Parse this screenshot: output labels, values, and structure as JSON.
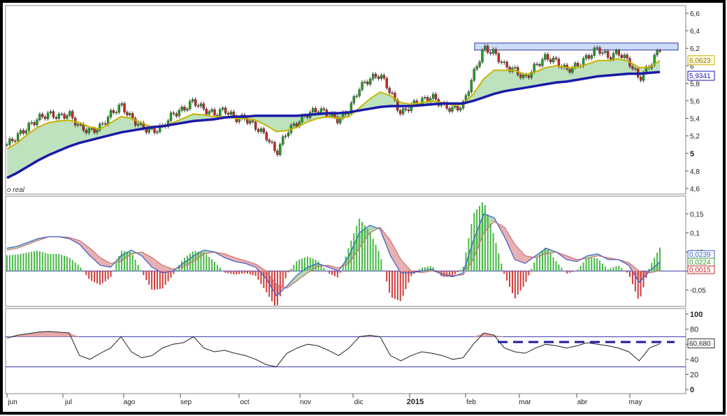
{
  "colors": {
    "price_fill": "#a8d8a8",
    "price_fill_neg": "#e6a8a8",
    "ema_short": "#c8b400",
    "ema_long": "#1a1aa8",
    "up_candle": "#22a022",
    "down_candle": "#c82828",
    "macd_line": "#3a5ad0",
    "signal_line": "#d07070",
    "rsi_line": "#222222",
    "guide": "#3333aa",
    "resistance_box": "#cfdcf5"
  },
  "labels": {
    "watermark": "o real",
    "year": "2015"
  },
  "chart_data": [
    {
      "type": "line",
      "panel": "price",
      "x_labels": [
        "jun",
        "jul",
        "ago",
        "sep",
        "oct",
        "nov",
        "dic",
        "2015",
        "feb",
        "mar",
        "abr",
        "may"
      ],
      "yticks": [
        "6,6",
        "6,4",
        "6,2",
        "6",
        "5,8",
        "5,6",
        "5,4",
        "5,2",
        "5",
        "4,8",
        "4,6"
      ],
      "ylim": [
        4.6,
        6.6
      ],
      "series": [
        {
          "role": "price",
          "values": [
            5.1,
            5.2,
            5.3,
            5.4,
            5.45,
            5.42,
            5.45,
            5.3,
            5.25,
            5.3,
            5.45,
            5.55,
            5.4,
            5.3,
            5.25,
            5.3,
            5.45,
            5.5,
            5.6,
            5.5,
            5.45,
            5.5,
            5.4,
            5.4,
            5.3,
            5.2,
            5.0,
            5.25,
            5.35,
            5.45,
            5.5,
            5.45,
            5.38,
            5.5,
            5.75,
            5.85,
            5.9,
            5.7,
            5.45,
            5.55,
            5.6,
            5.65,
            5.55,
            5.5,
            5.55,
            5.9,
            6.2,
            6.15,
            6.0,
            5.95,
            5.85,
            6.0,
            6.1,
            6.05,
            5.95,
            6.0,
            6.1,
            6.2,
            6.1,
            6.15,
            6.05,
            5.85,
            6.0,
            6.2
          ]
        },
        {
          "role": "ema_short",
          "label": "6,0623",
          "values": [
            5.05,
            5.12,
            5.22,
            5.3,
            5.35,
            5.37,
            5.38,
            5.35,
            5.3,
            5.28,
            5.35,
            5.42,
            5.4,
            5.35,
            5.3,
            5.3,
            5.35,
            5.4,
            5.45,
            5.44,
            5.42,
            5.42,
            5.4,
            5.4,
            5.38,
            5.32,
            5.25,
            5.26,
            5.3,
            5.36,
            5.4,
            5.42,
            5.4,
            5.42,
            5.52,
            5.62,
            5.7,
            5.66,
            5.58,
            5.56,
            5.58,
            5.6,
            5.58,
            5.55,
            5.56,
            5.68,
            5.85,
            5.95,
            5.95,
            5.95,
            5.9,
            5.93,
            5.98,
            6.0,
            5.98,
            5.98,
            6.02,
            6.06,
            6.06,
            6.08,
            6.05,
            5.98,
            5.98,
            6.06
          ]
        },
        {
          "role": "ema_long",
          "label": "5,9341",
          "values": [
            4.72,
            4.78,
            4.85,
            4.92,
            4.98,
            5.03,
            5.08,
            5.12,
            5.15,
            5.18,
            5.21,
            5.24,
            5.26,
            5.28,
            5.3,
            5.31,
            5.33,
            5.35,
            5.37,
            5.38,
            5.39,
            5.41,
            5.42,
            5.42,
            5.43,
            5.43,
            5.43,
            5.43,
            5.43,
            5.44,
            5.45,
            5.46,
            5.46,
            5.47,
            5.49,
            5.51,
            5.53,
            5.54,
            5.54,
            5.54,
            5.55,
            5.56,
            5.57,
            5.57,
            5.57,
            5.6,
            5.64,
            5.68,
            5.71,
            5.73,
            5.75,
            5.77,
            5.79,
            5.81,
            5.82,
            5.84,
            5.86,
            5.88,
            5.89,
            5.9,
            5.91,
            5.91,
            5.92,
            5.93
          ]
        }
      ],
      "resistance": 6.22
    },
    {
      "type": "bar",
      "panel": "macd",
      "yticks": [
        "0,15",
        "0,1",
        "0,05",
        "0",
        "-0,05"
      ],
      "ylim": [
        -0.08,
        0.18
      ],
      "value_labels": [
        "0,0239",
        "0,0224",
        "0,0015"
      ],
      "series": [
        {
          "role": "macd",
          "values": [
            0.06,
            0.065,
            0.075,
            0.085,
            0.09,
            0.09,
            0.085,
            0.07,
            0.04,
            0.015,
            0.01,
            0.04,
            0.055,
            0.04,
            0.01,
            -0.005,
            0.0,
            0.02,
            0.04,
            0.055,
            0.05,
            0.035,
            0.025,
            0.02,
            0.01,
            -0.02,
            -0.065,
            -0.04,
            -0.01,
            0.01,
            0.02,
            0.01,
            0.0,
            0.04,
            0.1,
            0.12,
            0.11,
            0.04,
            -0.005,
            -0.005,
            0.0,
            0.005,
            -0.01,
            -0.015,
            -0.005,
            0.08,
            0.15,
            0.14,
            0.09,
            0.03,
            0.02,
            0.04,
            0.06,
            0.05,
            0.03,
            0.025,
            0.04,
            0.045,
            0.03,
            0.03,
            0.015,
            -0.03,
            0.0,
            0.024
          ]
        },
        {
          "role": "signal",
          "values": [
            0.055,
            0.06,
            0.07,
            0.08,
            0.09,
            0.09,
            0.088,
            0.08,
            0.06,
            0.035,
            0.02,
            0.025,
            0.045,
            0.05,
            0.035,
            0.015,
            0.005,
            0.01,
            0.025,
            0.045,
            0.05,
            0.045,
            0.035,
            0.027,
            0.018,
            0.0,
            -0.035,
            -0.045,
            -0.025,
            -0.005,
            0.012,
            0.015,
            0.008,
            0.02,
            0.06,
            0.1,
            0.115,
            0.08,
            0.03,
            0.0,
            -0.004,
            0.0,
            -0.005,
            -0.012,
            -0.01,
            0.03,
            0.1,
            0.13,
            0.115,
            0.07,
            0.04,
            0.035,
            0.045,
            0.05,
            0.04,
            0.03,
            0.033,
            0.04,
            0.035,
            0.03,
            0.022,
            0.0,
            -0.005,
            0.0015
          ]
        }
      ]
    },
    {
      "type": "line",
      "panel": "rsi",
      "yticks": [
        "100",
        "80",
        "60",
        "40",
        "20",
        "0"
      ],
      "ylim": [
        0,
        100
      ],
      "value_label": "60,680",
      "guides": [
        70,
        30
      ],
      "dashed_level": 63,
      "series": [
        {
          "role": "rsi",
          "values": [
            68,
            72,
            74,
            76,
            77,
            76,
            75,
            45,
            40,
            48,
            55,
            70,
            50,
            42,
            45,
            55,
            60,
            62,
            70,
            55,
            50,
            52,
            48,
            45,
            40,
            33,
            30,
            48,
            55,
            60,
            58,
            52,
            45,
            55,
            70,
            72,
            70,
            45,
            38,
            45,
            50,
            48,
            45,
            40,
            42,
            60,
            75,
            72,
            55,
            50,
            48,
            55,
            60,
            58,
            55,
            58,
            62,
            60,
            58,
            55,
            50,
            38,
            55,
            60.68
          ]
        }
      ]
    }
  ]
}
